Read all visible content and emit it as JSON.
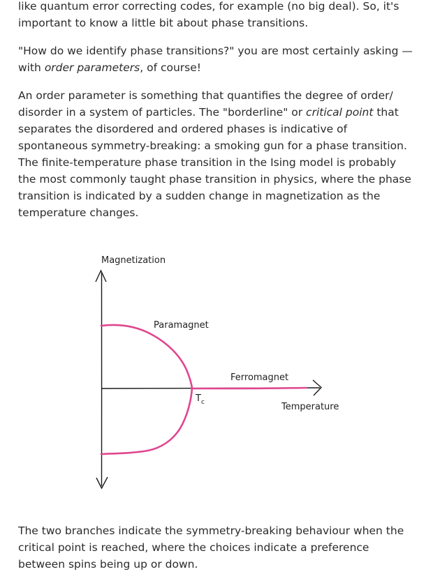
{
  "article": {
    "para1": "like quantum error correcting codes, for example (no big deal). So, it's important to know a little bit about phase transitions.",
    "para2": {
      "before": "\"How do we identify phase transitions?\" you are most certainly asking — with ",
      "emphasis": "order parameters",
      "after": ", of course!"
    },
    "para3": {
      "before": "An order parameter is something that quantifies the degree of order/ disorder in a system of particles. The \"borderline\" or ",
      "emphasis": "critical point",
      "after": " that separates the disordered and ordered phases is indicative of spontaneous symmetry-breaking: a smoking gun for a phase transition. The finite-temperature phase transition in the Ising model is probably the most commonly taught phase transition in physics, where the phase transition is indicated by a sudden change in magnetization as the temperature changes."
    },
    "para4": "The two branches indicate the symmetry-breaking behaviour when the critical point is reached, where the choices indicate a preference between spins being up or down."
  },
  "figure": {
    "y_axis_label": "Magnetization",
    "x_axis_label": "Temperature",
    "curve_label_upper": "Paramagnet",
    "curve_label_right": "Ferromagnet",
    "critical_label_main": "T",
    "critical_label_sub": "c",
    "curve_color": "#e0468f",
    "axis_color": "#1a1a1a"
  }
}
